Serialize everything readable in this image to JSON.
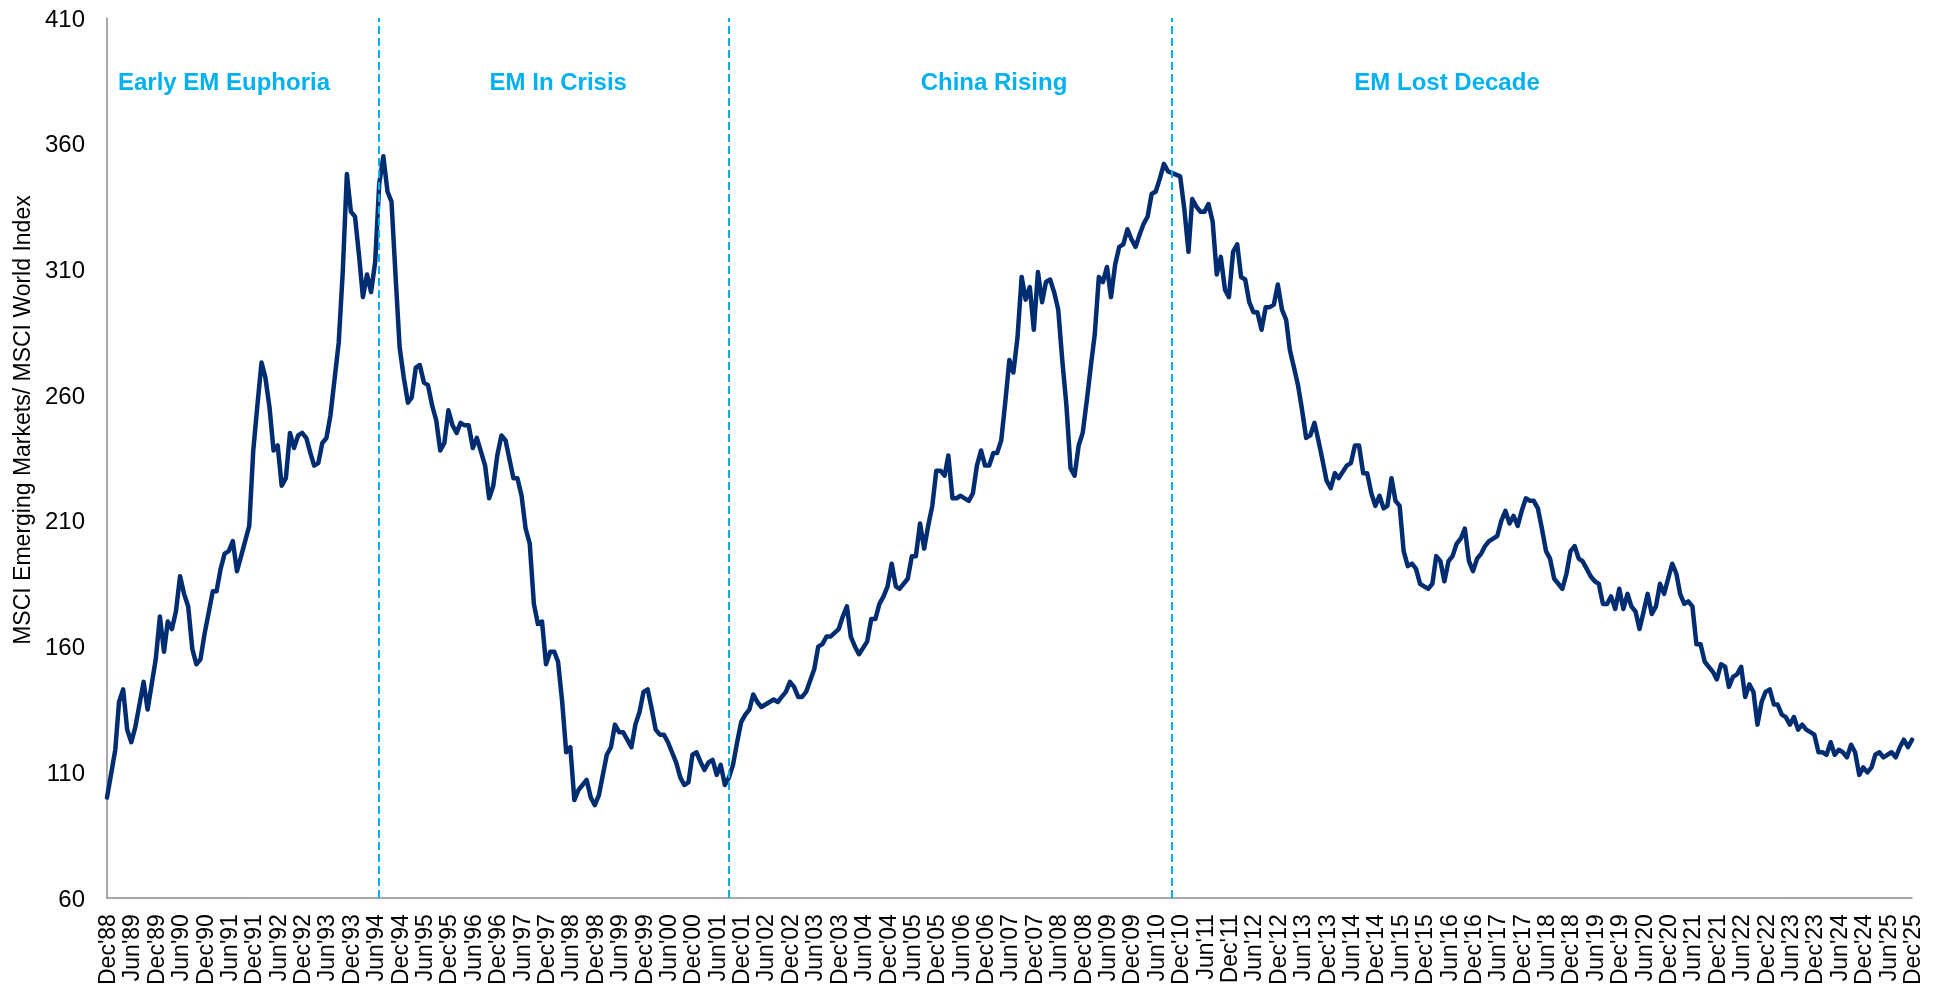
{
  "chart_data": {
    "type": "line",
    "ylabel": "MSCI Emerging Markets/ MSCI World Index",
    "color": "#002d72",
    "x": [
      "1988-12",
      "1989-02",
      "1989-03",
      "1989-04",
      "1989-05",
      "1989-06",
      "1989-07",
      "1989-09",
      "1989-10",
      "1989-12",
      "1990-01",
      "1990-02",
      "1990-03",
      "1990-04",
      "1990-05",
      "1990-06",
      "1990-07",
      "1990-08",
      "1990-09",
      "1990-10",
      "1990-11",
      "1990-12",
      "1991-02",
      "1991-03",
      "1991-04",
      "1991-05",
      "1991-06",
      "1991-07",
      "1991-08",
      "1991-09",
      "1991-11",
      "1991-12",
      "1992-01",
      "1992-02",
      "1992-03",
      "1992-04",
      "1992-05",
      "1992-06",
      "1992-07",
      "1992-08",
      "1992-09",
      "1992-10",
      "1992-11",
      "1992-12",
      "1993-01",
      "1993-02",
      "1993-03",
      "1993-04",
      "1993-05",
      "1993-06",
      "1993-07",
      "1993-09",
      "1993-10",
      "1993-11",
      "1993-12",
      "1994-01",
      "1994-02",
      "1994-03",
      "1994-04",
      "1994-05",
      "1994-06",
      "1994-07",
      "1994-08",
      "1994-09",
      "1994-10",
      "1994-11",
      "1994-12",
      "1995-01",
      "1995-02",
      "1995-03",
      "1995-04",
      "1995-05",
      "1995-06",
      "1995-07",
      "1995-08",
      "1995-09",
      "1995-10",
      "1995-11",
      "1995-12",
      "1996-01",
      "1996-02",
      "1996-03",
      "1996-04",
      "1996-05",
      "1996-06",
      "1996-07",
      "1996-09",
      "1996-10",
      "1996-11",
      "1996-12",
      "1997-01",
      "1997-02",
      "1997-04",
      "1997-05",
      "1997-06",
      "1997-07",
      "1997-08",
      "1997-09",
      "1997-10",
      "1997-11",
      "1997-12",
      "1998-01",
      "1998-02",
      "1998-03",
      "1998-04",
      "1998-05",
      "1998-06",
      "1998-07",
      "1998-08",
      "1998-10",
      "1998-11",
      "1998-12",
      "1999-01",
      "1999-03",
      "1999-04",
      "1999-05",
      "1999-06",
      "1999-07",
      "1999-08",
      "1999-09",
      "1999-10",
      "1999-11",
      "1999-12",
      "2000-01",
      "2000-02",
      "2000-03",
      "2000-04",
      "2000-05",
      "2000-06",
      "2000-07",
      "2000-08",
      "2000-09",
      "2000-10",
      "2000-11",
      "2000-12",
      "2001-01",
      "2001-02",
      "2001-03",
      "2001-04",
      "2001-05",
      "2001-06",
      "2001-07",
      "2001-08",
      "2001-09",
      "2001-10",
      "2001-11",
      "2001-12",
      "2002-01",
      "2002-02",
      "2002-03",
      "2002-04",
      "2002-05",
      "2002-06",
      "2002-08",
      "2002-09",
      "2002-10",
      "2002-11",
      "2002-12",
      "2003-01",
      "2003-02",
      "2003-03",
      "2003-04",
      "2003-06",
      "2003-07",
      "2003-08",
      "2003-09",
      "2003-10",
      "2003-12",
      "2004-01",
      "2004-02",
      "2004-03",
      "2004-04",
      "2004-05",
      "2004-07",
      "2004-08",
      "2004-09",
      "2004-10",
      "2004-11",
      "2004-12",
      "2005-01",
      "2005-02",
      "2005-03",
      "2005-05",
      "2005-06",
      "2005-07",
      "2005-08",
      "2005-09",
      "2005-10",
      "2005-11",
      "2005-12",
      "2006-01",
      "2006-02",
      "2006-03",
      "2006-04",
      "2006-05",
      "2006-06",
      "2006-07",
      "2006-08",
      "2006-09",
      "2006-10",
      "2006-11",
      "2006-12",
      "2007-01",
      "2007-02",
      "2007-03",
      "2007-04",
      "2007-05",
      "2007-06",
      "2007-07",
      "2007-08",
      "2007-09",
      "2007-10",
      "2007-11",
      "2007-12",
      "2008-01",
      "2008-02",
      "2008-03",
      "2008-04",
      "2008-05",
      "2008-06",
      "2008-07",
      "2008-08",
      "2008-09",
      "2008-10",
      "2008-11",
      "2008-12",
      "2009-01",
      "2009-02",
      "2009-03",
      "2009-04",
      "2009-05",
      "2009-06",
      "2009-07",
      "2009-08",
      "2009-09",
      "2009-10",
      "2009-11",
      "2009-12",
      "2010-01",
      "2010-02",
      "2010-03",
      "2010-04",
      "2010-05",
      "2010-06",
      "2010-07",
      "2010-08",
      "2010-09",
      "2010-12",
      "2011-01",
      "2011-02",
      "2011-03",
      "2011-04",
      "2011-05",
      "2011-06",
      "2011-07",
      "2011-08",
      "2011-09",
      "2011-10",
      "2011-11",
      "2011-12",
      "2012-01",
      "2012-02",
      "2012-03",
      "2012-04",
      "2012-05",
      "2012-06",
      "2012-07",
      "2012-08",
      "2012-09",
      "2012-10",
      "2012-11",
      "2012-12",
      "2013-01",
      "2013-02",
      "2013-03",
      "2013-04",
      "2013-05",
      "2013-06",
      "2013-07",
      "2013-08",
      "2013-09",
      "2013-10",
      "2013-11",
      "2013-12",
      "2014-01",
      "2014-02",
      "2014-03",
      "2014-05",
      "2014-06",
      "2014-07",
      "2014-08",
      "2014-09",
      "2014-10",
      "2014-11",
      "2014-12",
      "2015-01",
      "2015-02",
      "2015-03",
      "2015-04",
      "2015-05",
      "2015-06",
      "2015-07",
      "2015-08",
      "2015-09",
      "2015-10",
      "2015-11",
      "2015-12",
      "2016-01",
      "2016-02",
      "2016-03",
      "2016-04",
      "2016-05",
      "2016-06",
      "2016-07",
      "2016-08",
      "2016-09",
      "2016-10",
      "2016-11",
      "2016-12",
      "2017-01",
      "2017-02",
      "2017-03",
      "2017-04",
      "2017-05",
      "2017-06",
      "2017-07",
      "2017-08",
      "2017-09",
      "2017-10",
      "2017-11",
      "2017-12",
      "2018-01",
      "2018-02",
      "2018-03",
      "2018-04",
      "2018-05",
      "2018-06",
      "2018-07",
      "2018-08",
      "2018-09",
      "2018-10",
      "2018-11",
      "2018-12",
      "2019-01",
      "2019-02",
      "2019-03",
      "2019-04",
      "2019-05",
      "2019-06",
      "2019-07",
      "2019-08",
      "2019-09",
      "2019-10",
      "2019-11",
      "2019-12",
      "2020-01",
      "2020-02",
      "2020-03",
      "2020-04",
      "2020-05",
      "2020-06",
      "2020-07",
      "2020-08",
      "2020-09",
      "2020-10",
      "2020-11",
      "2020-12",
      "2021-01",
      "2021-02",
      "2021-03",
      "2021-04",
      "2021-05",
      "2021-06",
      "2021-07",
      "2021-08",
      "2021-09",
      "2021-11",
      "2021-12",
      "2022-01",
      "2022-02",
      "2022-03",
      "2022-04",
      "2022-05",
      "2022-06",
      "2022-07",
      "2022-08",
      "2022-09",
      "2022-10",
      "2022-11",
      "2022-12",
      "2023-01",
      "2023-02",
      "2023-03",
      "2023-04",
      "2023-05",
      "2023-06",
      "2023-07",
      "2023-08",
      "2023-09",
      "2023-10",
      "2023-11",
      "2023-12",
      "2024-01",
      "2024-02",
      "2024-03",
      "2024-04",
      "2024-05",
      "2024-06",
      "2024-07",
      "2024-08",
      "2024-09",
      "2024-10",
      "2024-11",
      "2024-12",
      "2025-01",
      "2025-02",
      "2025-03",
      "2025-04",
      "2025-05",
      "2025-06",
      "2025-07",
      "2025-08",
      "2025-09",
      "2025-10",
      "2025-11",
      "2025-12"
    ],
    "values": [
      100,
      119,
      138,
      143,
      127,
      122,
      128,
      146,
      135,
      155,
      172,
      158,
      170,
      167,
      174,
      188,
      181,
      176,
      159,
      153,
      155,
      165,
      182,
      182,
      191,
      197,
      198,
      202,
      190,
      196,
      208,
      238,
      256,
      273,
      267,
      255,
      238,
      240,
      224,
      227,
      245,
      239,
      244,
      245,
      243,
      237,
      232,
      233,
      241,
      243,
      252,
      281,
      309,
      348,
      333,
      331,
      315,
      299,
      308,
      301,
      313,
      344,
      355,
      341,
      337,
      307,
      279,
      267,
      257,
      259,
      271,
      272,
      265,
      264,
      256,
      250,
      238,
      241,
      254,
      248,
      245,
      249,
      248,
      248,
      239,
      243,
      232,
      219,
      224,
      236,
      244,
      242,
      227,
      227,
      220,
      207,
      201,
      177,
      169,
      170,
      153,
      158,
      158,
      154,
      138,
      118,
      120,
      99,
      103,
      107,
      100,
      97,
      101,
      117,
      120,
      129,
      126,
      126,
      123,
      120,
      129,
      134,
      142,
      143,
      135,
      127,
      125,
      125,
      122,
      118,
      114,
      108,
      105,
      106,
      117,
      118,
      114,
      111,
      114,
      115,
      109,
      113,
      105,
      108,
      113,
      122,
      130,
      133,
      135,
      141,
      138,
      136,
      137,
      139,
      138,
      140,
      142,
      146,
      144,
      140,
      140,
      142,
      151,
      160,
      161,
      164,
      164,
      167,
      172,
      176,
      164,
      160,
      157,
      162,
      171,
      171,
      177,
      180,
      184,
      193,
      184,
      183,
      187,
      196,
      196,
      209,
      199,
      208,
      216,
      230,
      230,
      228,
      236,
      219,
      219,
      220,
      219,
      218,
      221,
      232,
      238,
      232,
      232,
      237,
      237,
      242,
      257,
      274,
      269,
      283,
      307,
      298,
      303,
      286,
      309,
      297,
      305,
      306,
      301,
      294,
      274,
      256,
      231,
      228,
      240,
      245,
      258,
      272,
      284,
      307,
      305,
      311,
      299,
      312,
      319,
      320,
      326,
      322,
      319,
      324,
      328,
      331,
      340,
      341,
      346,
      352,
      349,
      347,
      334,
      317,
      338,
      335,
      333,
      333,
      336,
      329,
      308,
      315,
      302,
      299,
      317,
      320,
      307,
      306,
      297,
      293,
      293,
      286,
      295,
      295,
      296,
      304,
      294,
      290,
      278,
      271,
      264,
      254,
      243,
      244,
      249,
      242,
      234,
      226,
      223,
      229,
      227,
      232,
      233,
      240,
      240,
      229,
      229,
      221,
      216,
      220,
      215,
      216,
      227,
      218,
      216,
      198,
      192,
      193,
      191,
      185,
      184,
      183,
      185,
      196,
      194,
      186,
      194,
      196,
      201,
      203,
      207,
      194,
      190,
      195,
      197,
      200,
      202,
      203,
      204,
      210,
      214,
      209,
      212,
      208,
      214,
      219,
      218,
      218,
      215,
      207,
      198,
      195,
      187,
      185,
      183,
      189,
      198,
      200,
      195,
      194,
      191,
      188,
      186,
      185,
      177,
      177,
      180,
      175,
      183,
      175,
      181,
      176,
      174,
      167,
      174,
      181,
      173,
      176,
      185,
      181,
      187,
      193,
      189,
      181,
      177,
      178,
      176,
      161,
      161,
      154,
      150,
      147,
      153,
      152,
      144,
      148,
      149,
      152,
      140,
      145,
      142,
      129,
      138,
      142,
      143,
      137,
      137,
      133,
      132,
      129,
      132,
      127,
      129,
      127,
      126,
      125,
      118,
      118,
      117,
      122,
      117,
      119,
      118,
      116,
      121,
      118,
      109,
      112,
      110,
      112,
      117,
      118,
      116,
      117,
      118,
      116,
      120,
      123,
      120,
      123
    ],
    "xlim": [
      "1988-12",
      "2025-12"
    ],
    "xticks": [
      {
        "value": "1988-12",
        "label": "Dec'88"
      },
      {
        "value": "1989-06",
        "label": "Jun'89"
      },
      {
        "value": "1989-12",
        "label": "Dec'89"
      },
      {
        "value": "1990-06",
        "label": "Jun'90"
      },
      {
        "value": "1990-12",
        "label": "Dec'90"
      },
      {
        "value": "1991-06",
        "label": "Jun'91"
      },
      {
        "value": "1991-12",
        "label": "Dec'91"
      },
      {
        "value": "1992-06",
        "label": "Jun'92"
      },
      {
        "value": "1992-12",
        "label": "Dec'92"
      },
      {
        "value": "1993-06",
        "label": "Jun'93"
      },
      {
        "value": "1993-12",
        "label": "Dec'93"
      },
      {
        "value": "1994-06",
        "label": "Jun'94"
      },
      {
        "value": "1994-12",
        "label": "Dec'94"
      },
      {
        "value": "1995-06",
        "label": "Jun'95"
      },
      {
        "value": "1995-12",
        "label": "Dec'95"
      },
      {
        "value": "1996-06",
        "label": "Jun'96"
      },
      {
        "value": "1996-12",
        "label": "Dec'96"
      },
      {
        "value": "1997-06",
        "label": "Jun'97"
      },
      {
        "value": "1997-12",
        "label": "Dec'97"
      },
      {
        "value": "1998-06",
        "label": "Jun'98"
      },
      {
        "value": "1998-12",
        "label": "Dec'98"
      },
      {
        "value": "1999-06",
        "label": "Jun'99"
      },
      {
        "value": "1999-12",
        "label": "Dec'99"
      },
      {
        "value": "2000-06",
        "label": "Jun'00"
      },
      {
        "value": "2000-12",
        "label": "Dec'00"
      },
      {
        "value": "2001-06",
        "label": "Jun'01"
      },
      {
        "value": "2001-12",
        "label": "Dec'01"
      },
      {
        "value": "2002-06",
        "label": "Jun'02"
      },
      {
        "value": "2002-12",
        "label": "Dec'02"
      },
      {
        "value": "2003-06",
        "label": "Jun'03"
      },
      {
        "value": "2003-12",
        "label": "Dec'03"
      },
      {
        "value": "2004-06",
        "label": "Jun'04"
      },
      {
        "value": "2004-12",
        "label": "Dec'04"
      },
      {
        "value": "2005-06",
        "label": "Jun'05"
      },
      {
        "value": "2005-12",
        "label": "Dec'05"
      },
      {
        "value": "2006-06",
        "label": "Jun'06"
      },
      {
        "value": "2006-12",
        "label": "Dec'06"
      },
      {
        "value": "2007-06",
        "label": "Jun'07"
      },
      {
        "value": "2007-12",
        "label": "Dec'07"
      },
      {
        "value": "2008-06",
        "label": "Jun'08"
      },
      {
        "value": "2008-12",
        "label": "Dec'08"
      },
      {
        "value": "2009-06",
        "label": "Jun'09"
      },
      {
        "value": "2009-12",
        "label": "Dec'09"
      },
      {
        "value": "2010-06",
        "label": "Jun'10"
      },
      {
        "value": "2010-12",
        "label": "Dec'10"
      },
      {
        "value": "2011-06",
        "label": "Jun'11"
      },
      {
        "value": "2011-12",
        "label": "Dec'11"
      },
      {
        "value": "2012-06",
        "label": "Jun'12"
      },
      {
        "value": "2012-12",
        "label": "Dec'12"
      },
      {
        "value": "2013-06",
        "label": "Jun'13"
      },
      {
        "value": "2013-12",
        "label": "Dec'13"
      },
      {
        "value": "2014-06",
        "label": "Jun'14"
      },
      {
        "value": "2014-12",
        "label": "Dec'14"
      },
      {
        "value": "2015-06",
        "label": "Jun'15"
      },
      {
        "value": "2015-12",
        "label": "Dec'15"
      },
      {
        "value": "2016-06",
        "label": "Jun'16"
      },
      {
        "value": "2016-12",
        "label": "Dec'16"
      },
      {
        "value": "2017-06",
        "label": "Jun'17"
      },
      {
        "value": "2017-12",
        "label": "Dec'17"
      },
      {
        "value": "2018-06",
        "label": "Jun'18"
      },
      {
        "value": "2018-12",
        "label": "Dec'18"
      },
      {
        "value": "2019-06",
        "label": "Jun'19"
      },
      {
        "value": "2019-12",
        "label": "Dec'19"
      },
      {
        "value": "2020-06",
        "label": "Jun'20"
      },
      {
        "value": "2020-12",
        "label": "Dec'20"
      },
      {
        "value": "2021-06",
        "label": "Jun'21"
      },
      {
        "value": "2021-12",
        "label": "Dec'21"
      },
      {
        "value": "2022-06",
        "label": "Jun'22"
      },
      {
        "value": "2022-12",
        "label": "Dec'22"
      },
      {
        "value": "2023-06",
        "label": "Jun'23"
      },
      {
        "value": "2023-12",
        "label": "Dec'23"
      },
      {
        "value": "2024-06",
        "label": "Jun'24"
      },
      {
        "value": "2024-12",
        "label": "Dec'24"
      },
      {
        "value": "2025-06",
        "label": "Jun'25"
      },
      {
        "value": "2025-12",
        "label": "Dec'25"
      }
    ],
    "ylim": [
      60,
      410
    ],
    "yticks": [
      60,
      110,
      160,
      210,
      260,
      310,
      360,
      410
    ],
    "ref_lines": [
      {
        "axis": "x",
        "value": "1994-07",
        "color": "#00b0f0",
        "line_style": "dashed"
      },
      {
        "axis": "x",
        "value": "2001-09",
        "color": "#00b0f0",
        "line_style": "dashed"
      },
      {
        "axis": "x",
        "value": "2010-10",
        "color": "#00b0f0",
        "line_style": "dashed"
      }
    ],
    "annotations": [
      "Early EM Euphoria",
      "EM In Crisis",
      "China Rising",
      "EM Lost Decade"
    ]
  }
}
